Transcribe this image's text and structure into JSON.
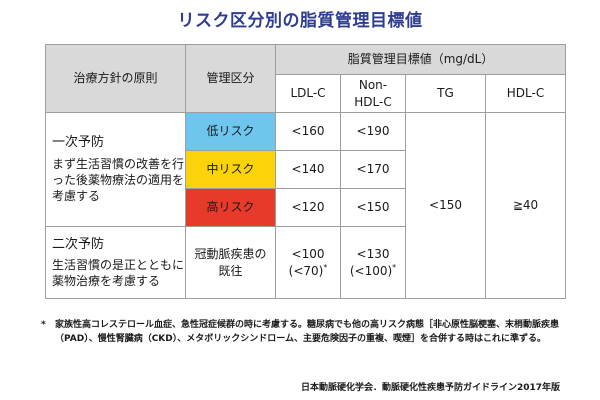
{
  "title": "リスク区分別の脂質管理目標値",
  "headers": {
    "principle": "治療方針の原則",
    "category": "管理区分",
    "target": "脂質管理目標値（mg/dL）",
    "ldl": "LDL-C",
    "nonhdl_1": "Non-",
    "nonhdl_2": "HDL-C",
    "tg": "TG",
    "hdl": "HDL-C"
  },
  "primary": {
    "title": "一次予防",
    "desc": "まず生活習慣の改善を行った後薬物療法の適用を考慮する"
  },
  "secondary": {
    "title": "二次予防",
    "desc": "生活習慣の是正とともに薬物治療を考慮する"
  },
  "rows": [
    {
      "category": "低リスク",
      "ldl": "<160",
      "nonhdl": "<190"
    },
    {
      "category": "中リスク",
      "ldl": "<140",
      "nonhdl": "<170"
    },
    {
      "category": "高リスク",
      "ldl": "<120",
      "nonhdl": "<150"
    }
  ],
  "secondary_row": {
    "category_1": "冠動脈疾患の",
    "category_2": "既往",
    "ldl_1": "<100",
    "ldl_2": "(<70)",
    "nonhdl_1": "<130",
    "nonhdl_2": "(<100)",
    "asterisk": "*"
  },
  "tg_value": "<150",
  "hdl_value": "≧40",
  "footnote": {
    "mark": "*",
    "text": "家族性高コレステロール血症、急性冠症候群の時に考慮する。糖尿病でも他の高リスク病態［非心原性脳梗塞、末梢動脈疾患（PAD）、慢性腎臓病（CKD）、メタボリックシンドローム、主要危険因子の重複、喫煙］を合併する時はこれに準ずる。"
  },
  "source": "日本動脈硬化学会．動脈硬化性疾患予防ガイドライン2017年版",
  "colors": {
    "low": "#6ec6ee",
    "mid": "#fcd20a",
    "high": "#e83a2a",
    "header": "#d9d9d9",
    "title": "#2e3d8f"
  }
}
